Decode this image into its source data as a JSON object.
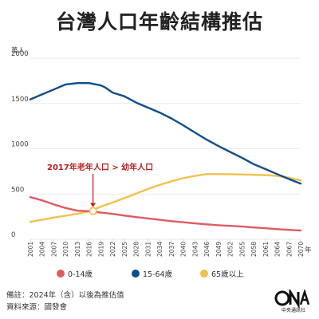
{
  "title": "台灣人口年齡結構推估",
  "chart_data": {
    "type": "line",
    "title": "台灣人口年齡結構推估",
    "ylabel": "萬人",
    "xlabel": "年",
    "ylim": [
      0,
      2000
    ],
    "yticks": [
      0,
      500,
      1000,
      1500,
      2000
    ],
    "xlim": [
      2001,
      2070
    ],
    "xticks": [
      2001,
      2004,
      2007,
      2010,
      2013,
      2016,
      2019,
      2022,
      2025,
      2028,
      2031,
      2034,
      2037,
      2040,
      2043,
      2046,
      2049,
      2052,
      2055,
      2058,
      2061,
      2064,
      2067,
      2070
    ],
    "grid": "horizontal",
    "legend_position": "bottom",
    "series": [
      {
        "name": "0-14歲",
        "color": "#e05a63",
        "x": [
          2001,
          2004,
          2007,
          2010,
          2013,
          2016,
          2019,
          2022,
          2025,
          2028,
          2031,
          2034,
          2037,
          2040,
          2043,
          2046,
          2049,
          2052,
          2055,
          2058,
          2061,
          2064,
          2067,
          2070
        ],
        "values": [
          465,
          430,
          385,
          345,
          315,
          310,
          295,
          280,
          262,
          245,
          230,
          215,
          200,
          188,
          175,
          165,
          155,
          148,
          140,
          130,
          122,
          112,
          104,
          96
        ]
      },
      {
        "name": "15-64歲",
        "color": "#104d8b",
        "x": [
          2001,
          2004,
          2007,
          2010,
          2013,
          2016,
          2019,
          2020,
          2022,
          2025,
          2028,
          2031,
          2034,
          2037,
          2040,
          2043,
          2046,
          2049,
          2052,
          2055,
          2058,
          2061,
          2064,
          2067,
          2070
        ],
        "values": [
          1545,
          1600,
          1655,
          1710,
          1725,
          1725,
          1700,
          1680,
          1620,
          1580,
          1510,
          1455,
          1400,
          1335,
          1260,
          1180,
          1100,
          1030,
          965,
          900,
          830,
          775,
          720,
          665,
          615
        ]
      },
      {
        "name": "65歲以上",
        "color": "#f2c04d",
        "x": [
          2001,
          2004,
          2007,
          2010,
          2013,
          2016,
          2019,
          2022,
          2025,
          2028,
          2031,
          2034,
          2037,
          2040,
          2043,
          2046,
          2049,
          2052,
          2055,
          2058,
          2061,
          2064,
          2067,
          2070
        ],
        "values": [
          192,
          215,
          240,
          260,
          280,
          310,
          360,
          405,
          455,
          505,
          555,
          600,
          640,
          675,
          700,
          720,
          720,
          718,
          715,
          712,
          708,
          700,
          680,
          650
        ]
      }
    ],
    "annotation": {
      "text": "2017年老年人口 > 幼年人口",
      "color": "#b52020",
      "marker": {
        "x": 2017,
        "y": 312
      }
    }
  },
  "notes": [
    "備註：2024年（含）以後為推估值",
    "資料來源：國發會"
  ],
  "logo_text": "CNA",
  "logo_subtext": "中央通訊社"
}
